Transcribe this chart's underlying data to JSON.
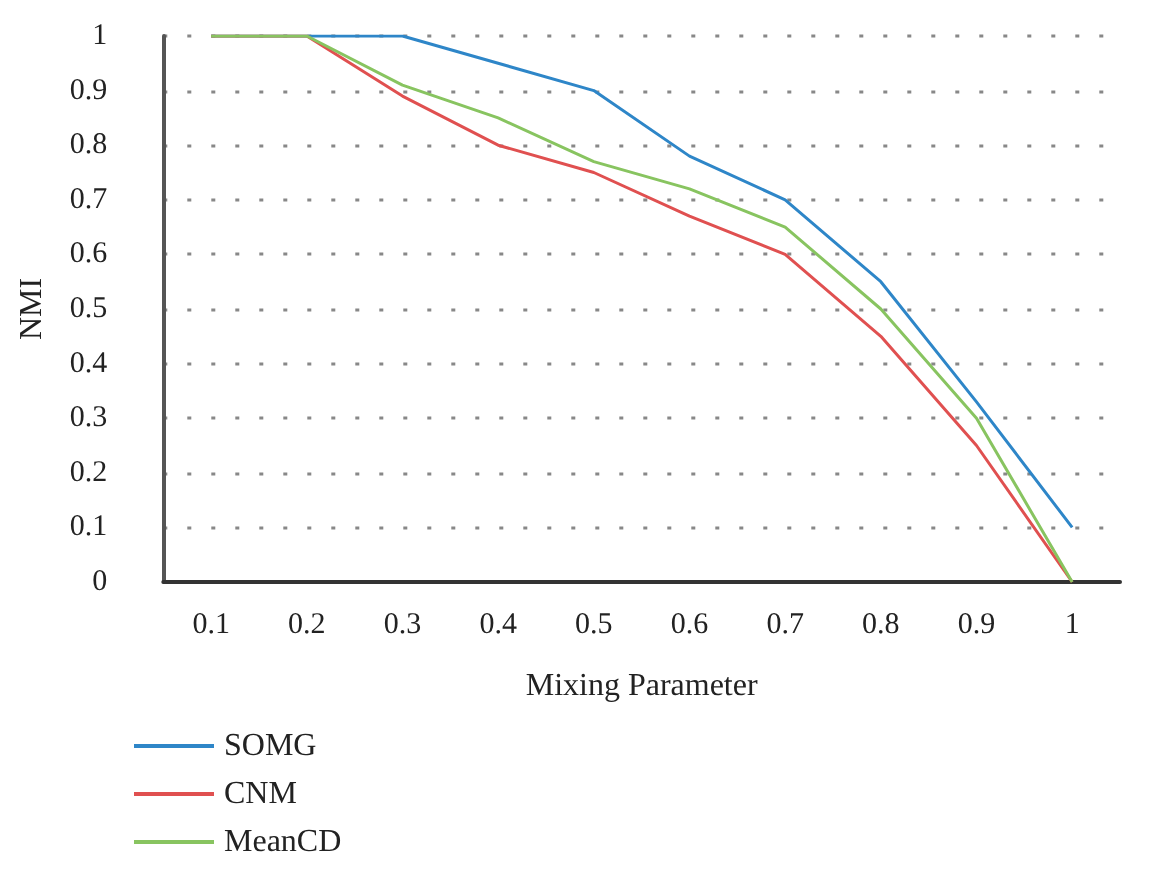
{
  "chart_data": {
    "type": "line",
    "xlabel": "Mixing Parameter",
    "ylabel": "NMI",
    "categories": [
      "0.1",
      "0.2",
      "0.3",
      "0.4",
      "0.5",
      "0.6",
      "0.7",
      "0.8",
      "0.9",
      "1"
    ],
    "series": [
      {
        "name": "SOMG",
        "color": "#2e86c8",
        "values": [
          1,
          1,
          1,
          0.95,
          0.9,
          0.78,
          0.7,
          0.55,
          0.33,
          0.1
        ]
      },
      {
        "name": "CNM",
        "color": "#e05050",
        "values": [
          1,
          1,
          0.89,
          0.8,
          0.75,
          0.67,
          0.6,
          0.45,
          0.25,
          0
        ]
      },
      {
        "name": "MeanCD",
        "color": "#88c460",
        "values": [
          1,
          1,
          0.91,
          0.85,
          0.77,
          0.72,
          0.65,
          0.5,
          0.3,
          0
        ]
      }
    ],
    "ylim": [
      0,
      1
    ],
    "yticks": [
      0,
      0.1,
      0.2,
      0.3,
      0.4,
      0.5,
      0.6,
      0.7,
      0.8,
      0.9,
      1
    ],
    "grid": "y",
    "legend": "bottom left",
    "marker": "none",
    "line_style": "solid"
  }
}
